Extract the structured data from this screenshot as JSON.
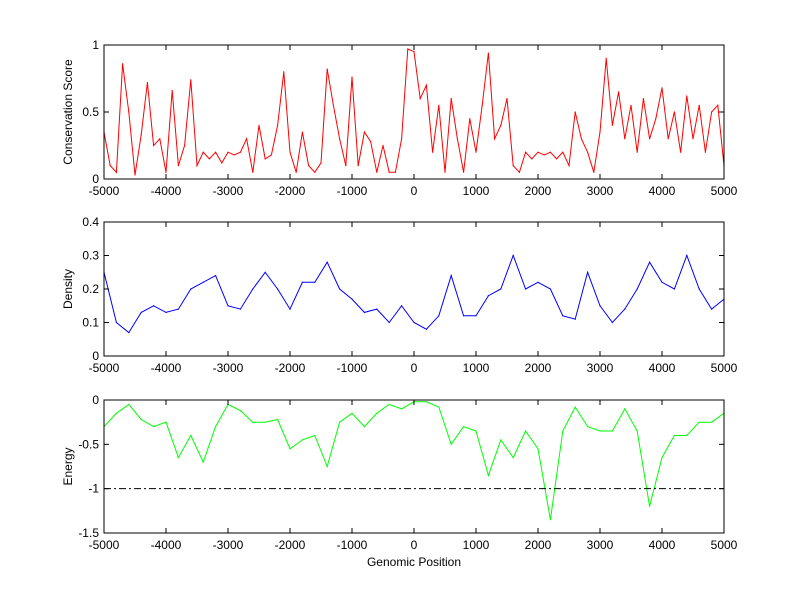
{
  "chart_data": [
    {
      "type": "line",
      "title": "",
      "xlabel": "",
      "ylabel": "Conservation Score",
      "xlim": [
        -5000,
        5000
      ],
      "ylim": [
        0,
        1
      ],
      "xticks": [
        -5000,
        -4000,
        -3000,
        -2000,
        -1000,
        0,
        1000,
        2000,
        3000,
        4000,
        5000
      ],
      "xtick_labels": [
        "-5000",
        "-4000",
        "-3000",
        "-2000",
        "-1000",
        "0",
        "1000",
        "2000",
        "3000",
        "4000",
        "5000"
      ],
      "yticks": [
        0,
        0.5,
        1
      ],
      "ytick_labels": [
        "0",
        "0.5",
        "1"
      ],
      "grid": false,
      "series": [
        {
          "name": "conservation",
          "color": "#ff0000",
          "x_start": -5000,
          "x_step": 100,
          "values": [
            0.35,
            0.1,
            0.05,
            0.86,
            0.5,
            0.03,
            0.33,
            0.72,
            0.25,
            0.3,
            0.05,
            0.66,
            0.1,
            0.25,
            0.74,
            0.1,
            0.2,
            0.15,
            0.2,
            0.12,
            0.2,
            0.18,
            0.2,
            0.3,
            0.05,
            0.4,
            0.15,
            0.18,
            0.4,
            0.8,
            0.2,
            0.05,
            0.35,
            0.1,
            0.05,
            0.12,
            0.82,
            0.55,
            0.3,
            0.1,
            0.76,
            0.1,
            0.35,
            0.28,
            0.05,
            0.25,
            0.05,
            0.05,
            0.3,
            0.97,
            0.95,
            0.6,
            0.7,
            0.2,
            0.55,
            0.05,
            0.6,
            0.3,
            0.05,
            0.45,
            0.2,
            0.55,
            0.94,
            0.3,
            0.4,
            0.6,
            0.1,
            0.05,
            0.2,
            0.15,
            0.2,
            0.18,
            0.2,
            0.15,
            0.2,
            0.1,
            0.5,
            0.3,
            0.2,
            0.05,
            0.35,
            0.9,
            0.4,
            0.65,
            0.3,
            0.55,
            0.2,
            0.6,
            0.3,
            0.45,
            0.68,
            0.3,
            0.5,
            0.2,
            0.62,
            0.3,
            0.55,
            0.2,
            0.5,
            0.55,
            0.1
          ]
        }
      ]
    },
    {
      "type": "line",
      "title": "",
      "xlabel": "",
      "ylabel": "Density",
      "xlim": [
        -5000,
        5000
      ],
      "ylim": [
        0,
        0.4
      ],
      "xticks": [
        -5000,
        -4000,
        -3000,
        -2000,
        -1000,
        0,
        1000,
        2000,
        3000,
        4000,
        5000
      ],
      "xtick_labels": [
        "-5000",
        "-4000",
        "-3000",
        "-2000",
        "-1000",
        "0",
        "1000",
        "2000",
        "3000",
        "4000",
        "5000"
      ],
      "yticks": [
        0,
        0.1,
        0.2,
        0.3,
        0.4
      ],
      "ytick_labels": [
        "0",
        "0.1",
        "0.2",
        "0.3",
        "0.4"
      ],
      "grid": false,
      "series": [
        {
          "name": "density",
          "color": "#0000ff",
          "x_start": -5000,
          "x_step": 200,
          "values": [
            0.25,
            0.1,
            0.07,
            0.13,
            0.15,
            0.13,
            0.14,
            0.2,
            0.22,
            0.24,
            0.15,
            0.14,
            0.2,
            0.25,
            0.2,
            0.14,
            0.22,
            0.22,
            0.28,
            0.2,
            0.17,
            0.13,
            0.14,
            0.1,
            0.15,
            0.1,
            0.08,
            0.12,
            0.24,
            0.12,
            0.12,
            0.18,
            0.2,
            0.3,
            0.2,
            0.22,
            0.2,
            0.12,
            0.11,
            0.25,
            0.15,
            0.1,
            0.14,
            0.2,
            0.28,
            0.22,
            0.2,
            0.3,
            0.2,
            0.14,
            0.17
          ]
        }
      ]
    },
    {
      "type": "line",
      "title": "",
      "xlabel": "Genomic Position",
      "ylabel": "Energy",
      "xlim": [
        -5000,
        5000
      ],
      "ylim": [
        -1.5,
        0
      ],
      "xticks": [
        -5000,
        -4000,
        -3000,
        -2000,
        -1000,
        0,
        1000,
        2000,
        3000,
        4000,
        5000
      ],
      "xtick_labels": [
        "-5000",
        "-4000",
        "-3000",
        "-2000",
        "-1000",
        "0",
        "1000",
        "2000",
        "3000",
        "4000",
        "5000"
      ],
      "yticks": [
        -1.5,
        -1,
        -0.5,
        0
      ],
      "ytick_labels": [
        "-1.5",
        "-1",
        "-0.5",
        "0"
      ],
      "grid": false,
      "threshold": {
        "y": -1,
        "color": "#000000",
        "style": "dash-dot"
      },
      "series": [
        {
          "name": "energy",
          "color": "#00ff00",
          "x_start": -5000,
          "x_step": 200,
          "values": [
            -0.3,
            -0.15,
            -0.05,
            -0.22,
            -0.3,
            -0.25,
            -0.65,
            -0.4,
            -0.7,
            -0.3,
            -0.05,
            -0.12,
            -0.25,
            -0.25,
            -0.22,
            -0.55,
            -0.45,
            -0.4,
            -0.75,
            -0.25,
            -0.15,
            -0.3,
            -0.15,
            -0.05,
            -0.1,
            -0.02,
            -0.02,
            -0.08,
            -0.5,
            -0.3,
            -0.35,
            -0.85,
            -0.45,
            -0.65,
            -0.35,
            -0.55,
            -1.35,
            -0.35,
            -0.08,
            -0.3,
            -0.35,
            -0.35,
            -0.1,
            -0.35,
            -1.2,
            -0.65,
            -0.4,
            -0.4,
            -0.25,
            -0.25,
            -0.15
          ]
        }
      ]
    }
  ]
}
